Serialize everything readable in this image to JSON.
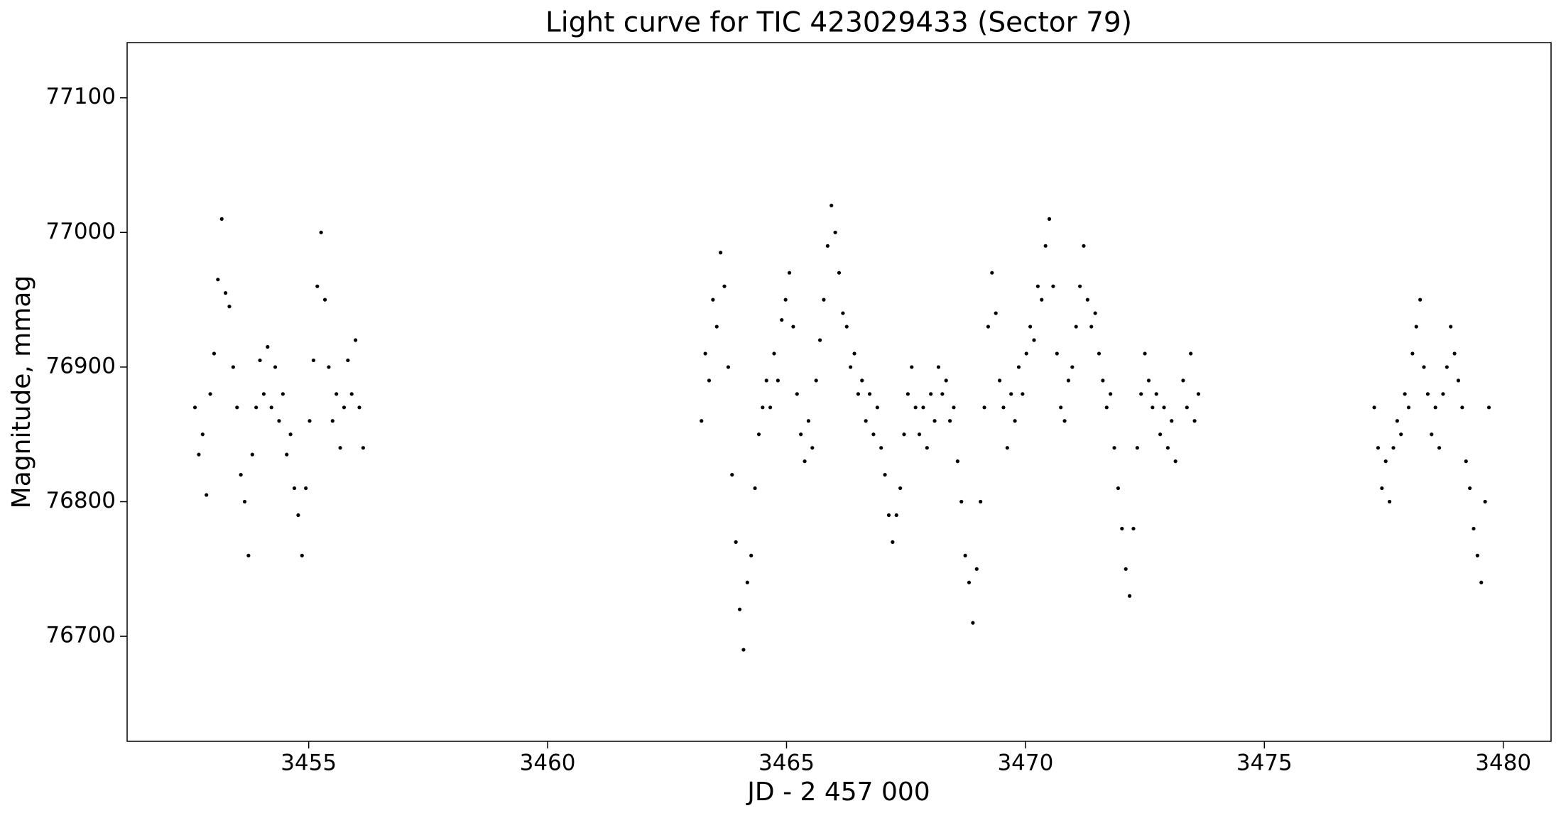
{
  "chart_data": {
    "type": "scatter",
    "title": "Light curve for TIC 423029433 (Sector 79)",
    "x_label": "JD - 2 457 000",
    "y_label": "Magnitude, mmag",
    "color": "#000000",
    "xlim": [
      3451.2,
      3481.0
    ],
    "ylim": [
      76622,
      77141
    ],
    "xticks": [
      3455,
      3460,
      3465,
      3470,
      3475,
      3480
    ],
    "yticks": [
      76700,
      76800,
      76900,
      77000,
      77100
    ],
    "grid": false,
    "x": [
      3452.62,
      3452.7,
      3452.78,
      3452.86,
      3452.94,
      3453.02,
      3453.1,
      3453.18,
      3453.26,
      3453.34,
      3453.42,
      3453.5,
      3453.58,
      3453.66,
      3453.74,
      3453.82,
      3453.9,
      3453.98,
      3454.06,
      3454.14,
      3454.22,
      3454.3,
      3454.38,
      3454.46,
      3454.54,
      3454.62,
      3454.7,
      3454.78,
      3454.86,
      3454.94,
      3455.02,
      3455.1,
      3455.18,
      3455.26,
      3455.34,
      3455.42,
      3455.5,
      3455.58,
      3455.66,
      3455.74,
      3455.82,
      3455.9,
      3455.98,
      3456.06,
      3456.14,
      3463.22,
      3463.3,
      3463.38,
      3463.46,
      3463.54,
      3463.62,
      3463.7,
      3463.78,
      3463.86,
      3463.94,
      3464.02,
      3464.1,
      3464.18,
      3464.26,
      3464.34,
      3464.42,
      3464.5,
      3464.58,
      3464.66,
      3464.74,
      3464.82,
      3464.9,
      3464.98,
      3465.06,
      3465.14,
      3465.22,
      3465.3,
      3465.38,
      3465.46,
      3465.54,
      3465.62,
      3465.7,
      3465.78,
      3465.86,
      3465.94,
      3466.02,
      3466.1,
      3466.18,
      3466.26,
      3466.34,
      3466.42,
      3466.5,
      3466.58,
      3466.66,
      3466.74,
      3466.82,
      3466.9,
      3466.98,
      3467.06,
      3467.14,
      3467.22,
      3467.3,
      3467.38,
      3467.46,
      3467.54,
      3467.62,
      3467.7,
      3467.78,
      3467.86,
      3467.94,
      3468.02,
      3468.1,
      3468.18,
      3468.26,
      3468.34,
      3468.42,
      3468.5,
      3468.58,
      3468.66,
      3468.74,
      3468.82,
      3468.9,
      3468.98,
      3469.06,
      3469.14,
      3469.22,
      3469.3,
      3469.38,
      3469.46,
      3469.54,
      3469.62,
      3469.7,
      3469.78,
      3469.86,
      3469.94,
      3470.02,
      3470.1,
      3470.18,
      3470.26,
      3470.34,
      3470.42,
      3470.5,
      3470.58,
      3470.66,
      3470.74,
      3470.82,
      3470.9,
      3470.98,
      3471.06,
      3471.14,
      3471.22,
      3471.3,
      3471.38,
      3471.46,
      3471.54,
      3471.62,
      3471.7,
      3471.78,
      3471.86,
      3471.94,
      3472.02,
      3472.1,
      3472.18,
      3472.26,
      3472.34,
      3472.42,
      3472.5,
      3472.58,
      3472.66,
      3472.74,
      3472.82,
      3472.9,
      3472.98,
      3473.06,
      3473.14,
      3473.3,
      3473.38,
      3473.46,
      3473.54,
      3473.62,
      3477.3,
      3477.38,
      3477.46,
      3477.54,
      3477.62,
      3477.7,
      3477.78,
      3477.86,
      3477.94,
      3478.02,
      3478.1,
      3478.18,
      3478.26,
      3478.34,
      3478.42,
      3478.5,
      3478.58,
      3478.66,
      3478.74,
      3478.82,
      3478.9,
      3478.98,
      3479.06,
      3479.14,
      3479.22,
      3479.3,
      3479.38,
      3479.46,
      3479.54,
      3479.62,
      3479.7
    ],
    "values": [
      76870,
      76835,
      76850,
      76805,
      76880,
      76910,
      76965,
      77010,
      76955,
      76945,
      76900,
      76870,
      76820,
      76800,
      76760,
      76835,
      76870,
      76905,
      76880,
      76915,
      76870,
      76900,
      76860,
      76880,
      76835,
      76850,
      76810,
      76790,
      76760,
      76810,
      76860,
      76905,
      76960,
      77000,
      76950,
      76900,
      76860,
      76880,
      76840,
      76870,
      76905,
      76880,
      76920,
      76870,
      76840,
      76860,
      76910,
      76890,
      76950,
      76930,
      76985,
      76960,
      76900,
      76820,
      76770,
      76720,
      76690,
      76740,
      76760,
      76810,
      76850,
      76870,
      76890,
      76870,
      76910,
      76890,
      76935,
      76950,
      76970,
      76930,
      76880,
      76850,
      76830,
      76860,
      76840,
      76890,
      76920,
      76950,
      76990,
      77020,
      77000,
      76970,
      76940,
      76930,
      76900,
      76910,
      76880,
      76890,
      76860,
      76880,
      76850,
      76870,
      76840,
      76820,
      76790,
      76770,
      76790,
      76810,
      76850,
      76880,
      76900,
      76870,
      76850,
      76870,
      76840,
      76880,
      76860,
      76900,
      76880,
      76890,
      76860,
      76870,
      76830,
      76800,
      76760,
      76740,
      76710,
      76750,
      76800,
      76870,
      76930,
      76970,
      76940,
      76890,
      76870,
      76840,
      76880,
      76860,
      76900,
      76880,
      76910,
      76930,
      76920,
      76960,
      76950,
      76990,
      77010,
      76960,
      76910,
      76870,
      76860,
      76890,
      76900,
      76930,
      76960,
      76990,
      76950,
      76930,
      76940,
      76910,
      76890,
      76870,
      76880,
      76840,
      76810,
      76780,
      76750,
      76730,
      76780,
      76840,
      76880,
      76910,
      76890,
      76870,
      76880,
      76850,
      76870,
      76840,
      76860,
      76830,
      76890,
      76870,
      76910,
      76860,
      76880,
      76870,
      76840,
      76810,
      76830,
      76800,
      76840,
      76860,
      76850,
      76880,
      76870,
      76910,
      76930,
      76950,
      76900,
      76880,
      76850,
      76870,
      76840,
      76880,
      76900,
      76930,
      76910,
      76890,
      76870,
      76830,
      76810,
      76780,
      76760,
      76740,
      76800,
      76870
    ]
  }
}
